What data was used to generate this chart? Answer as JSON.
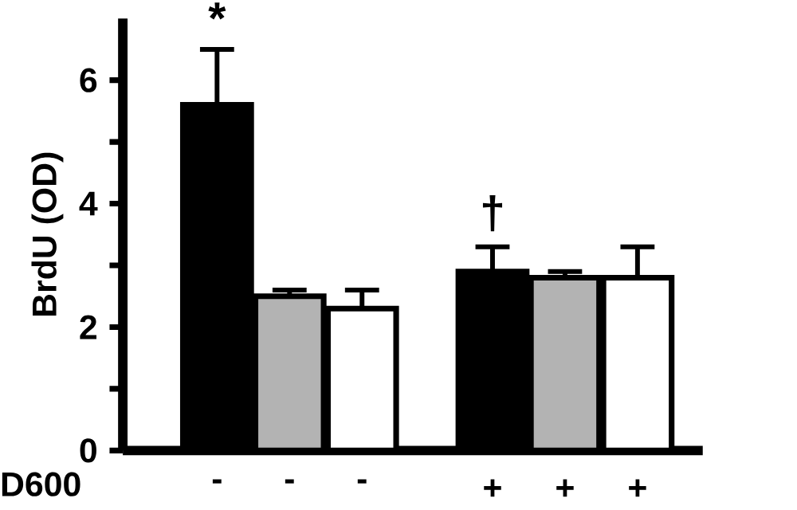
{
  "chart_data": {
    "type": "bar",
    "ylabel": "BrdU (OD)",
    "xlabel": "D600",
    "categories": [
      "-",
      "-",
      "-",
      "+",
      "+",
      "+"
    ],
    "values": [
      5.6,
      2.5,
      2.3,
      2.9,
      2.8,
      2.8
    ],
    "colors": [
      "#000000",
      "#b3b3b3",
      "#ffffff",
      "#000000",
      "#b3b3b3",
      "#ffffff"
    ],
    "errors": [
      [
        5.6,
        6.5
      ],
      [
        2.5,
        2.6
      ],
      [
        2.3,
        2.6
      ],
      [
        2.9,
        3.3
      ],
      [
        2.8,
        2.9
      ],
      [
        2.8,
        3.3
      ]
    ],
    "ylim": [
      0,
      7
    ],
    "yticks": [
      0,
      {
        "value": 1,
        "label": null
      },
      2,
      {
        "value": 3,
        "label": null
      },
      4,
      {
        "value": 5,
        "label": null
      },
      6
    ],
    "annotations": [
      "*",
      "†"
    ],
    "grid": false
  }
}
